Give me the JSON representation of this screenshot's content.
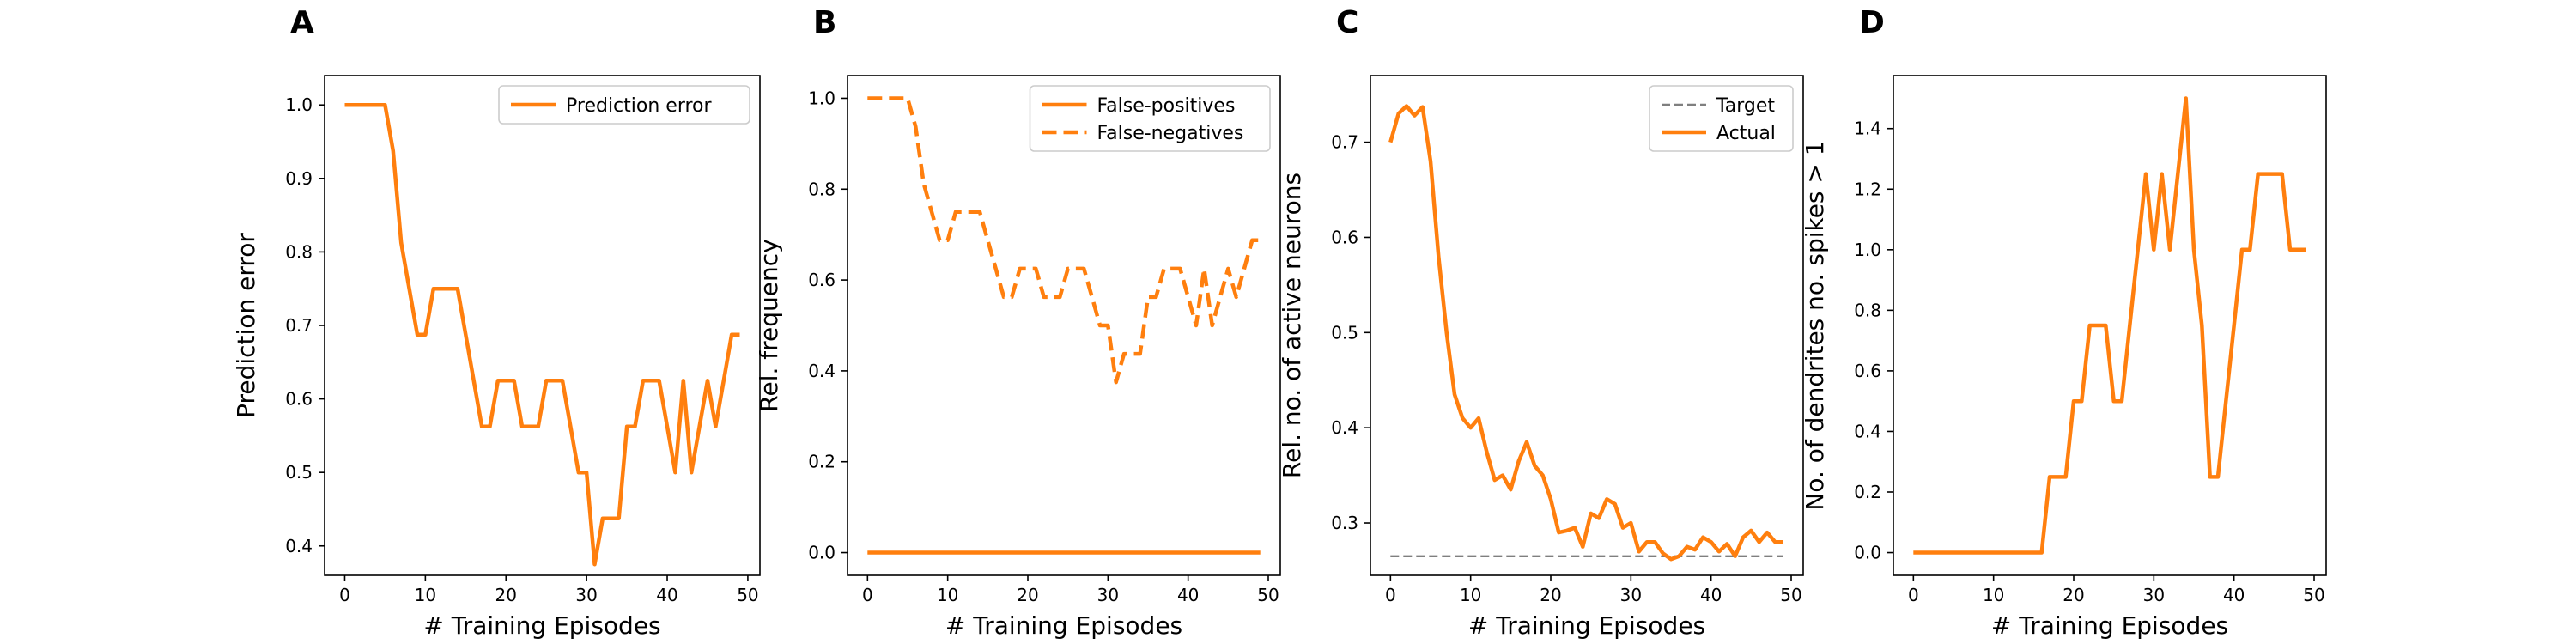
{
  "colors": {
    "series": "#ff7f0e",
    "target": "#7f7f7f",
    "axis": "#000000"
  },
  "chart_data": [
    {
      "panel": "A",
      "type": "line",
      "xlabel": "# Training Episodes",
      "ylabel": "Prediction error",
      "xlim": [
        -2.5,
        51.5
      ],
      "ylim": [
        0.36,
        1.04
      ],
      "xticks": [
        0,
        10,
        20,
        30,
        40,
        50
      ],
      "yticks": [
        0.4,
        0.5,
        0.6,
        0.7,
        0.8,
        0.9,
        1.0
      ],
      "ytick_labels": [
        "0.4",
        "0.5",
        "0.6",
        "0.7",
        "0.8",
        "0.9",
        "1.0"
      ],
      "legend": "upper right",
      "series": [
        {
          "name": "Prediction error",
          "style": "solid",
          "x": [
            0,
            1,
            2,
            3,
            4,
            5,
            6,
            7,
            8,
            9,
            10,
            11,
            12,
            13,
            14,
            15,
            16,
            17,
            18,
            19,
            20,
            21,
            22,
            23,
            24,
            25,
            26,
            27,
            28,
            29,
            30,
            31,
            32,
            33,
            34,
            35,
            36,
            37,
            38,
            39,
            40,
            41,
            42,
            43,
            44,
            45,
            46,
            47,
            48,
            49
          ],
          "y": [
            1.0,
            1.0,
            1.0,
            1.0,
            1.0,
            1.0,
            0.9375,
            0.8125,
            0.75,
            0.6875,
            0.6875,
            0.75,
            0.75,
            0.75,
            0.75,
            0.6875,
            0.625,
            0.5625,
            0.5625,
            0.625,
            0.625,
            0.625,
            0.5625,
            0.5625,
            0.5625,
            0.625,
            0.625,
            0.625,
            0.5625,
            0.5,
            0.5,
            0.375,
            0.4375,
            0.4375,
            0.4375,
            0.5625,
            0.5625,
            0.625,
            0.625,
            0.625,
            0.5625,
            0.5,
            0.625,
            0.5,
            0.5625,
            0.625,
            0.5625,
            0.625,
            0.6875,
            0.6875
          ]
        }
      ]
    },
    {
      "panel": "B",
      "type": "line",
      "xlabel": "# Training Episodes",
      "ylabel": "Rel. frequency",
      "xlim": [
        -2.5,
        51.5
      ],
      "ylim": [
        -0.05,
        1.05
      ],
      "xticks": [
        0,
        10,
        20,
        30,
        40,
        50
      ],
      "yticks": [
        0.0,
        0.2,
        0.4,
        0.6,
        0.8,
        1.0
      ],
      "ytick_labels": [
        "0.0",
        "0.2",
        "0.4",
        "0.6",
        "0.8",
        "1.0"
      ],
      "legend": "upper right",
      "series": [
        {
          "name": "False-positives",
          "style": "solid",
          "x": [
            0,
            49
          ],
          "y": [
            0.0,
            0.0
          ]
        },
        {
          "name": "False-negatives",
          "style": "dashed",
          "x": [
            0,
            1,
            2,
            3,
            4,
            5,
            6,
            7,
            8,
            9,
            10,
            11,
            12,
            13,
            14,
            15,
            16,
            17,
            18,
            19,
            20,
            21,
            22,
            23,
            24,
            25,
            26,
            27,
            28,
            29,
            30,
            31,
            32,
            33,
            34,
            35,
            36,
            37,
            38,
            39,
            40,
            41,
            42,
            43,
            44,
            45,
            46,
            47,
            48,
            49
          ],
          "y": [
            1.0,
            1.0,
            1.0,
            1.0,
            1.0,
            1.0,
            0.9375,
            0.8125,
            0.75,
            0.6875,
            0.6875,
            0.75,
            0.75,
            0.75,
            0.75,
            0.6875,
            0.625,
            0.5625,
            0.5625,
            0.625,
            0.625,
            0.625,
            0.5625,
            0.5625,
            0.5625,
            0.625,
            0.625,
            0.625,
            0.5625,
            0.5,
            0.5,
            0.375,
            0.4375,
            0.4375,
            0.4375,
            0.5625,
            0.5625,
            0.625,
            0.625,
            0.625,
            0.5625,
            0.5,
            0.625,
            0.5,
            0.5625,
            0.625,
            0.5625,
            0.625,
            0.6875,
            0.6875
          ]
        }
      ]
    },
    {
      "panel": "C",
      "type": "line",
      "xlabel": "# Training Episodes",
      "ylabel": "Rel. no. of active neurons",
      "xlim": [
        -2.5,
        51.5
      ],
      "ylim": [
        0.245,
        0.77
      ],
      "xticks": [
        0,
        10,
        20,
        30,
        40,
        50
      ],
      "yticks": [
        0.3,
        0.4,
        0.5,
        0.6,
        0.7
      ],
      "ytick_labels": [
        "0.3",
        "0.4",
        "0.5",
        "0.6",
        "0.7"
      ],
      "legend": "upper right",
      "series": [
        {
          "name": "Target",
          "style": "dashed-thin",
          "x": [
            0,
            49
          ],
          "y": [
            0.265,
            0.265
          ]
        },
        {
          "name": "Actual",
          "style": "solid",
          "x": [
            0,
            1,
            2,
            3,
            4,
            5,
            6,
            7,
            8,
            9,
            10,
            11,
            12,
            13,
            14,
            15,
            16,
            17,
            18,
            19,
            20,
            21,
            22,
            23,
            24,
            25,
            26,
            27,
            28,
            29,
            30,
            31,
            32,
            33,
            34,
            35,
            36,
            37,
            38,
            39,
            40,
            41,
            42,
            43,
            44,
            45,
            46,
            47,
            48,
            49
          ],
          "y": [
            0.7,
            0.73,
            0.738,
            0.728,
            0.737,
            0.68,
            0.58,
            0.5,
            0.435,
            0.41,
            0.4,
            0.41,
            0.375,
            0.345,
            0.35,
            0.335,
            0.365,
            0.385,
            0.36,
            0.35,
            0.325,
            0.29,
            0.292,
            0.295,
            0.275,
            0.31,
            0.305,
            0.325,
            0.32,
            0.295,
            0.3,
            0.27,
            0.28,
            0.28,
            0.268,
            0.262,
            0.265,
            0.275,
            0.272,
            0.285,
            0.28,
            0.27,
            0.278,
            0.265,
            0.285,
            0.292,
            0.28,
            0.29,
            0.28,
            0.28
          ]
        }
      ]
    },
    {
      "panel": "D",
      "type": "line",
      "xlabel": "# Training Episodes",
      "ylabel": "No. of dendrites no. spikes > 1",
      "xlim": [
        -2.5,
        51.5
      ],
      "ylim": [
        -0.075,
        1.575
      ],
      "xticks": [
        0,
        10,
        20,
        30,
        40,
        50
      ],
      "yticks": [
        0.0,
        0.2,
        0.4,
        0.6,
        0.8,
        1.0,
        1.2,
        1.4
      ],
      "ytick_labels": [
        "0.0",
        "0.2",
        "0.4",
        "0.6",
        "0.8",
        "1.0",
        "1.2",
        "1.4"
      ],
      "legend": "none",
      "series": [
        {
          "name": "",
          "style": "solid",
          "x": [
            0,
            1,
            2,
            3,
            4,
            5,
            6,
            7,
            8,
            9,
            10,
            11,
            12,
            13,
            14,
            15,
            16,
            17,
            18,
            19,
            20,
            21,
            22,
            23,
            24,
            25,
            26,
            27,
            28,
            29,
            30,
            31,
            32,
            33,
            34,
            35,
            36,
            37,
            38,
            39,
            40,
            41,
            42,
            43,
            44,
            45,
            46,
            47,
            48,
            49
          ],
          "y": [
            0,
            0,
            0,
            0,
            0,
            0,
            0,
            0,
            0,
            0,
            0,
            0,
            0,
            0,
            0,
            0,
            0,
            0.25,
            0.25,
            0.25,
            0.5,
            0.5,
            0.75,
            0.75,
            0.75,
            0.5,
            0.5,
            0.75,
            1.0,
            1.25,
            1.0,
            1.25,
            1.0,
            1.25,
            1.5,
            1.0,
            0.75,
            0.25,
            0.25,
            0.5,
            0.75,
            1.0,
            1.0,
            1.25,
            1.25,
            1.25,
            1.25,
            1.0,
            1.0,
            1.0
          ]
        }
      ]
    }
  ]
}
